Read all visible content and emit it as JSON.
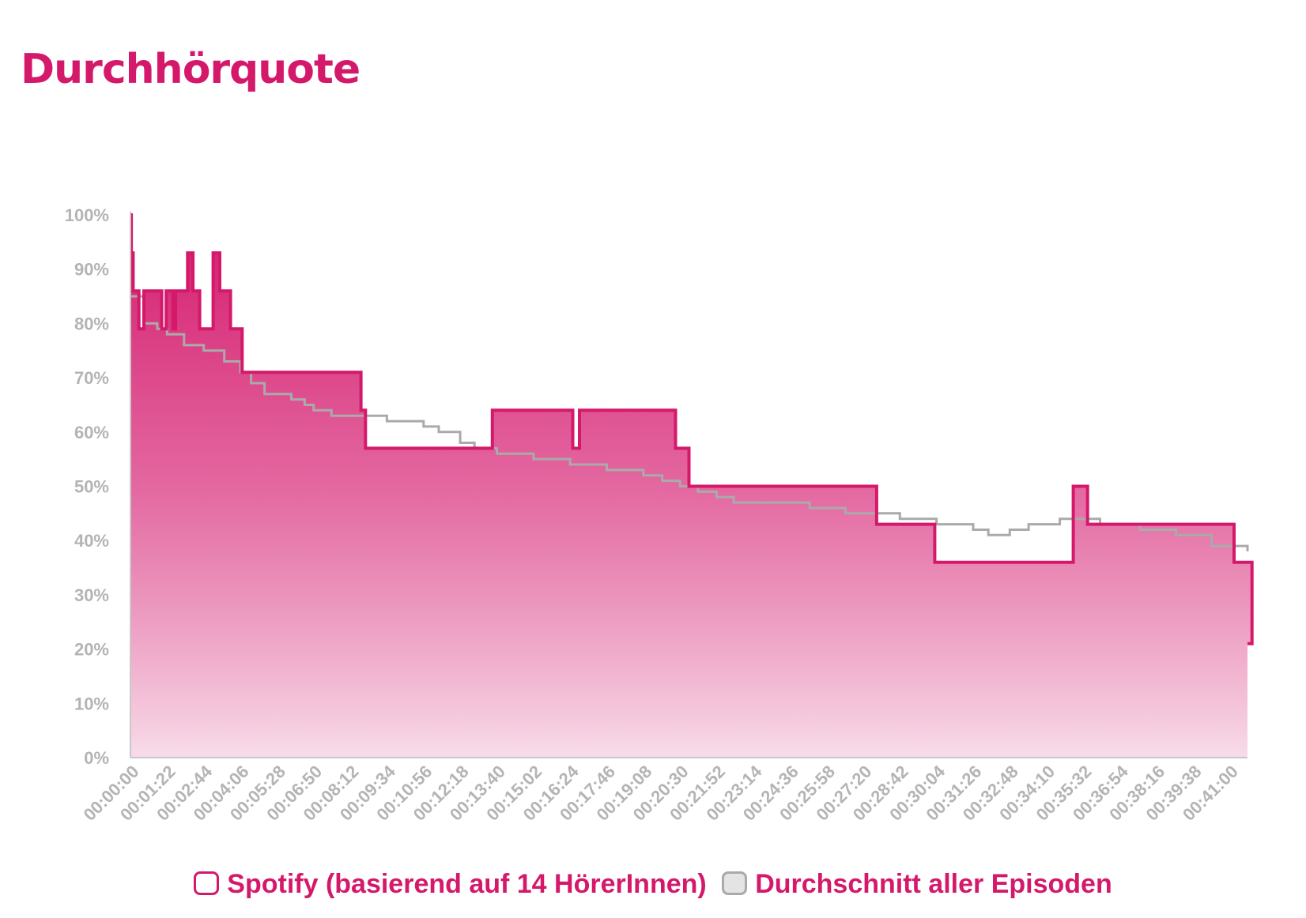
{
  "title": "Durchhörquote",
  "chart_data": {
    "type": "line",
    "title": "Durchhörquote",
    "xlabel": "",
    "ylabel": "",
    "ylim": [
      0,
      100
    ],
    "y_ticks": [
      "0%",
      "10%",
      "20%",
      "30%",
      "40%",
      "50%",
      "60%",
      "70%",
      "80%",
      "90%",
      "100%"
    ],
    "x_range": [
      "00:00:00",
      "00:41:40"
    ],
    "x_ticks": [
      "00:00:00",
      "00:01:22",
      "00:02:44",
      "00:04:06",
      "00:05:28",
      "00:06:50",
      "00:08:12",
      "00:09:34",
      "00:10:56",
      "00:12:18",
      "00:13:40",
      "00:15:02",
      "00:16:24",
      "00:17:46",
      "00:19:08",
      "00:20:30",
      "00:21:52",
      "00:23:14",
      "00:24:36",
      "00:25:58",
      "00:27:20",
      "00:28:42",
      "00:30:04",
      "00:31:26",
      "00:32:48",
      "00:34:10",
      "00:35:32",
      "00:36:54",
      "00:38:16",
      "00:39:38",
      "00:41:00"
    ],
    "grid": false,
    "legend_position": "bottom",
    "series": [
      {
        "name": "Spotify (basierend auf 14 HörerInnen)",
        "color": "#d4196b",
        "style": "step-area",
        "x": [
          "00:00:00",
          "00:00:02",
          "00:00:06",
          "00:00:12",
          "00:00:19",
          "00:00:30",
          "00:00:40",
          "00:01:10",
          "00:01:20",
          "00:01:35",
          "00:01:41",
          "00:01:50",
          "00:02:00",
          "00:02:08",
          "00:02:20",
          "00:02:30",
          "00:02:35",
          "00:02:45",
          "00:03:05",
          "00:03:10",
          "00:03:20",
          "00:03:34",
          "00:03:44",
          "00:04:10",
          "00:04:16",
          "00:08:36",
          "00:08:46",
          "00:13:30",
          "00:16:30",
          "00:16:45",
          "00:20:20",
          "00:20:50",
          "00:27:50",
          "00:30:00",
          "00:35:10",
          "00:35:42",
          "00:41:10",
          "00:41:50"
        ],
        "y": [
          100,
          93,
          86,
          86,
          79,
          86,
          86,
          79,
          86,
          79,
          86,
          86,
          86,
          93,
          86,
          86,
          79,
          79,
          93,
          93,
          86,
          86,
          79,
          71,
          71,
          64,
          57,
          64,
          57,
          64,
          57,
          50,
          43,
          36,
          50,
          43,
          36,
          21
        ]
      },
      {
        "name": "Durchschnitt aller Episoden",
        "color": "#aaaaaa",
        "style": "step-line",
        "x": [
          "00:00:00",
          "00:00:30",
          "00:01:00",
          "00:01:22",
          "00:02:00",
          "00:02:44",
          "00:03:30",
          "00:04:06",
          "00:04:30",
          "00:05:00",
          "00:05:28",
          "00:06:00",
          "00:06:30",
          "00:06:50",
          "00:07:30",
          "00:08:12",
          "00:09:00",
          "00:09:34",
          "00:10:10",
          "00:10:56",
          "00:11:30",
          "00:12:18",
          "00:12:50",
          "00:13:40",
          "00:14:20",
          "00:15:02",
          "00:15:40",
          "00:16:24",
          "00:17:00",
          "00:17:46",
          "00:18:30",
          "00:19:08",
          "00:19:50",
          "00:20:30",
          "00:21:10",
          "00:21:52",
          "00:22:30",
          "00:23:14",
          "00:24:00",
          "00:24:36",
          "00:25:20",
          "00:25:58",
          "00:26:40",
          "00:27:20",
          "00:28:00",
          "00:28:42",
          "00:29:20",
          "00:30:04",
          "00:30:50",
          "00:31:26",
          "00:32:00",
          "00:32:48",
          "00:33:30",
          "00:34:10",
          "00:34:40",
          "00:35:32",
          "00:36:10",
          "00:36:54",
          "00:37:40",
          "00:38:16",
          "00:39:00",
          "00:39:38",
          "00:40:20",
          "00:41:00",
          "00:41:40"
        ],
        "y": [
          85,
          80,
          79,
          78,
          76,
          75,
          73,
          71,
          69,
          67,
          67,
          66,
          65,
          64,
          63,
          63,
          63,
          62,
          62,
          61,
          60,
          58,
          57,
          56,
          56,
          55,
          55,
          54,
          54,
          53,
          53,
          52,
          51,
          50,
          49,
          48,
          47,
          47,
          47,
          47,
          46,
          46,
          45,
          45,
          45,
          44,
          44,
          43,
          43,
          42,
          41,
          42,
          43,
          43,
          44,
          44,
          43,
          43,
          42,
          42,
          41,
          41,
          39,
          39,
          38
        ]
      }
    ]
  },
  "legend": [
    {
      "label": "Spotify (basierend auf 14 HörerInnen)"
    },
    {
      "label": "Durchschnitt aller Episoden"
    }
  ],
  "colors": {
    "accent": "#d4196b",
    "average": "#aaaaaa",
    "axis": "#c8c8c8",
    "tick_text": "#b4b4b4"
  }
}
